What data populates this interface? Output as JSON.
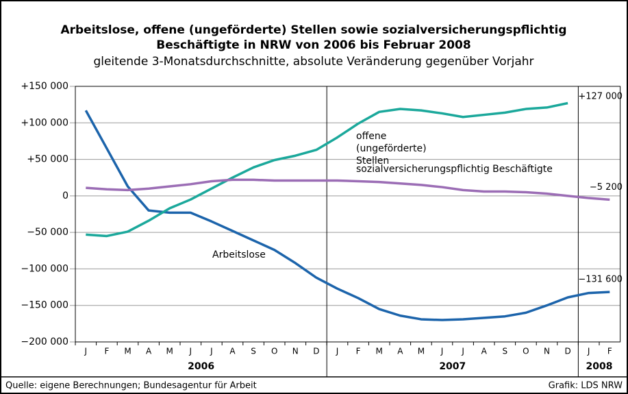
{
  "chart_data": {
    "type": "line",
    "title": [
      "Arbeitslose, offene (ungeförderte) Stellen sowie sozialversicherungspflichtig",
      "Beschäftigte in NRW von 2006 bis Februar 2008"
    ],
    "subtitle": "gleitende 3-Monatsdurchschnitte, absolute Veränderung gegenüber Vorjahr",
    "categories": [
      "J",
      "F",
      "M",
      "A",
      "M",
      "J",
      "J",
      "A",
      "S",
      "O",
      "N",
      "D",
      "J",
      "F",
      "M",
      "A",
      "M",
      "J",
      "J",
      "A",
      "S",
      "O",
      "N",
      "D",
      "J",
      "F"
    ],
    "years": [
      "2006",
      "2007",
      "2008"
    ],
    "ylim": [
      -200000,
      150000
    ],
    "yticks": [
      {
        "value": -200000,
        "label": "−200 000"
      },
      {
        "value": -150000,
        "label": "−150 000"
      },
      {
        "value": -100000,
        "label": "−100 000"
      },
      {
        "value": -50000,
        "label": "−50 000"
      },
      0,
      {
        "value": 50000,
        "label": "+50 000"
      },
      {
        "value": 100000,
        "label": "+100 000"
      },
      {
        "value": 150000,
        "label": "+150 000"
      }
    ],
    "grid": true,
    "series": [
      {
        "name": "Arbeitslose",
        "color": "#1c64ab",
        "values": [
          117000,
          65000,
          13000,
          -20000,
          -23000,
          -23000,
          -35000,
          -48000,
          -61000,
          -74000,
          -92000,
          -112000,
          -127000,
          -140000,
          -155000,
          -164000,
          -169000,
          -170000,
          -169000,
          -167000,
          -165000,
          -160000,
          -150000,
          -139000,
          -133000,
          -131600
        ],
        "value_labels": [
          null,
          null,
          null,
          null,
          null,
          null,
          null,
          null,
          null,
          null,
          null,
          null,
          null,
          null,
          null,
          null,
          null,
          null,
          null,
          null,
          null,
          null,
          null,
          null,
          null,
          "−131 600"
        ]
      },
      {
        "name": "sozialversicherungspflichtig Beschäftigte",
        "color": "#1ba89b",
        "values": [
          -53000,
          -55000,
          -49000,
          -34000,
          -17000,
          -5000,
          10000,
          25000,
          39000,
          49000,
          55000,
          63000,
          80000,
          99000,
          115000,
          119000,
          117000,
          113000,
          108000,
          111000,
          114000,
          119000,
          121000,
          127000,
          null,
          null
        ],
        "value_labels": [
          null,
          null,
          null,
          null,
          null,
          null,
          null,
          null,
          null,
          null,
          null,
          null,
          null,
          null,
          null,
          null,
          null,
          null,
          null,
          null,
          null,
          null,
          null,
          "+127 000",
          null,
          null
        ]
      },
      {
        "name": "offene (ungeförderte) Stellen",
        "color": "#9b6db5",
        "values": [
          11000,
          9000,
          8000,
          10000,
          13000,
          16000,
          20000,
          22000,
          22000,
          21000,
          21000,
          21000,
          21000,
          20000,
          19000,
          17000,
          15000,
          12000,
          8000,
          6000,
          6000,
          5000,
          3000,
          0,
          -3000,
          -5200
        ],
        "value_labels": [
          null,
          null,
          null,
          null,
          null,
          null,
          null,
          null,
          null,
          null,
          null,
          null,
          null,
          null,
          null,
          null,
          null,
          null,
          null,
          null,
          null,
          null,
          null,
          null,
          null,
          "−5 200"
        ]
      }
    ],
    "source": "Quelle: eigene Berechnungen; Bundesagentur für Arbeit",
    "credit": "Grafik: LDS NRW"
  }
}
